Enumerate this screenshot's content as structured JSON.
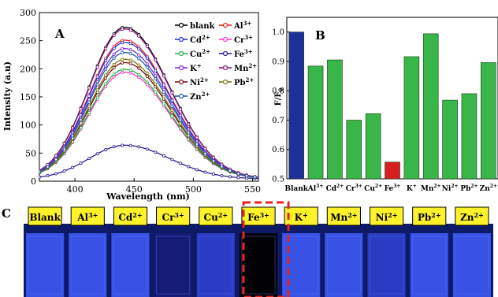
{
  "panel_a": {
    "letter": "A",
    "legend": [
      {
        "label": "blank",
        "sup": "",
        "color": "#000000",
        "marker": "square-open"
      },
      {
        "label": "Al",
        "sup": "3+",
        "color": "#e8231f",
        "marker": "circle-open"
      },
      {
        "label": "Cd",
        "sup": "2+",
        "color": "#2433d6",
        "marker": "triangle-up-open"
      },
      {
        "label": "Cr",
        "sup": "3+",
        "color": "#ff3cc8",
        "marker": "triangle-down-open"
      },
      {
        "label": "Cu",
        "sup": "2+",
        "color": "#24b24b",
        "marker": "diamond-open"
      },
      {
        "label": "Fe",
        "sup": "3+",
        "color": "#2a1f8f",
        "marker": "triangle-left-open"
      },
      {
        "label": "K",
        "sup": "+",
        "color": "#7b2fd6",
        "marker": "triangle-right-open"
      },
      {
        "label": "Mn",
        "sup": "2+",
        "color": "#8a1e84",
        "marker": "hexagon-open"
      },
      {
        "label": "Ni",
        "sup": "2+",
        "color": "#7a1010",
        "marker": "star-open"
      },
      {
        "label": "Pb",
        "sup": "2+",
        "color": "#7f7a14",
        "marker": "pentagon-open"
      },
      {
        "label": "Zn",
        "sup": "2+",
        "color": "#1f5fb0",
        "marker": "circle-open"
      }
    ]
  },
  "panel_b": {
    "letter": "B"
  },
  "panel_c": {
    "letter": "C",
    "samples": [
      {
        "label": "Blank",
        "sup": "",
        "vial": "bright"
      },
      {
        "label": "Al",
        "sup": "3+",
        "vial": "bright"
      },
      {
        "label": "Cd",
        "sup": "2+",
        "vial": "bright"
      },
      {
        "label": "Cr",
        "sup": "3+",
        "vial": "dark"
      },
      {
        "label": "Cu",
        "sup": "2+",
        "vial": "medium"
      },
      {
        "label": "Fe",
        "sup": "3+",
        "vial": "black"
      },
      {
        "label": "K",
        "sup": "+",
        "vial": "bright"
      },
      {
        "label": "Mn",
        "sup": "2+",
        "vial": "bright"
      },
      {
        "label": "Ni",
        "sup": "2+",
        "vial": "medium"
      },
      {
        "label": "Pb",
        "sup": "2+",
        "vial": "bright"
      },
      {
        "label": "Zn",
        "sup": "2+",
        "vial": "bright"
      }
    ],
    "highlight_color": "#e8231f",
    "label_bg": "#fff22a"
  },
  "chart_data": [
    {
      "type": "line",
      "panel": "A",
      "xlabel": "Wavelength (nm)",
      "ylabel": "Intensity (a.u)",
      "xlim": [
        370,
        555
      ],
      "ylim": [
        0,
        300
      ],
      "xticks": [
        400,
        450,
        500,
        550
      ],
      "yticks": [
        0,
        50,
        100,
        150,
        200,
        250,
        300
      ],
      "legend_position": "top-right",
      "peak_wavelength": 442,
      "series": [
        {
          "name": "blank",
          "peak": 270
        },
        {
          "name": "Al3+",
          "peak": 247
        },
        {
          "name": "Cd2+",
          "peak": 243
        },
        {
          "name": "Cr3+",
          "peak": 190
        },
        {
          "name": "Cu2+",
          "peak": 195
        },
        {
          "name": "Fe3+",
          "peak": 60
        },
        {
          "name": "K+",
          "peak": 232
        },
        {
          "name": "Mn2+",
          "peak": 267
        },
        {
          "name": "Ni2+",
          "peak": 207
        },
        {
          "name": "Pb2+",
          "peak": 213
        },
        {
          "name": "Zn2+",
          "peak": 225
        }
      ]
    },
    {
      "type": "bar",
      "panel": "B",
      "ylabel": "F/F",
      "ylabel_sub": "0",
      "ylim": [
        0.5,
        1.05
      ],
      "yticks": [
        0.5,
        0.6,
        0.7,
        0.8,
        0.9,
        1.0
      ],
      "categories": [
        "Blank",
        "Al3+",
        "Cd2+",
        "Cr3+",
        "Cu2+",
        "Fe3+",
        "K+",
        "Mn2+",
        "Ni2+",
        "Pb2+",
        "Zn2+"
      ],
      "category_labels": [
        {
          "base": "Blank",
          "sup": ""
        },
        {
          "base": "Al",
          "sup": "3+"
        },
        {
          "base": "Cd",
          "sup": "2+"
        },
        {
          "base": "Cr",
          "sup": "3+"
        },
        {
          "base": "Cu",
          "sup": "2+"
        },
        {
          "base": "Fe",
          "sup": "3+"
        },
        {
          "base": "K",
          "sup": "+"
        },
        {
          "base": "Mn",
          "sup": "2+"
        },
        {
          "base": "Ni",
          "sup": "2+"
        },
        {
          "base": "Pb",
          "sup": "2+"
        },
        {
          "base": "Zn",
          "sup": "2+"
        }
      ],
      "values": [
        1.0,
        0.884,
        0.905,
        0.7,
        0.722,
        0.557,
        0.916,
        0.994,
        0.768,
        0.79,
        0.896
      ],
      "bar_colors": [
        "#1f2f9a",
        "#39b54a",
        "#39b54a",
        "#39b54a",
        "#39b54a",
        "#d81f1f",
        "#39b54a",
        "#39b54a",
        "#39b54a",
        "#39b54a",
        "#39b54a"
      ]
    }
  ]
}
